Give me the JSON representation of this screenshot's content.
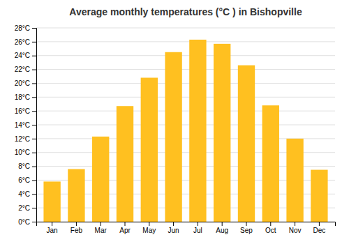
{
  "chart_data": {
    "type": "bar",
    "title": "Average monthly temperatures (°C ) in Bishopville",
    "categories": [
      "Jan",
      "Feb",
      "Mar",
      "Apr",
      "May",
      "Jun",
      "Jul",
      "Aug",
      "Sep",
      "Oct",
      "Nov",
      "Dec"
    ],
    "values": [
      5.8,
      7.6,
      12.3,
      16.7,
      20.8,
      24.5,
      26.3,
      25.7,
      22.6,
      16.8,
      12.0,
      7.5
    ],
    "color": "#FFC020",
    "ylim": [
      0,
      28
    ],
    "yticks": [
      {
        "value": 0,
        "label": "0°C"
      },
      {
        "value": 2,
        "label": "2°C"
      },
      {
        "value": 4,
        "label": "4°C"
      },
      {
        "value": 6,
        "label": "6°C"
      },
      {
        "value": 8,
        "label": "8°C"
      },
      {
        "value": 10,
        "label": "10°C"
      },
      {
        "value": 12,
        "label": "12°C"
      },
      {
        "value": 14,
        "label": "14°C"
      },
      {
        "value": 16,
        "label": "16°C"
      },
      {
        "value": 18,
        "label": "18°C"
      },
      {
        "value": 20,
        "label": "20°C"
      },
      {
        "value": 22,
        "label": "22°C"
      },
      {
        "value": 24,
        "label": "24°C"
      },
      {
        "value": 26,
        "label": "26°C"
      },
      {
        "value": 28,
        "label": "28°C"
      }
    ],
    "grid": true
  }
}
